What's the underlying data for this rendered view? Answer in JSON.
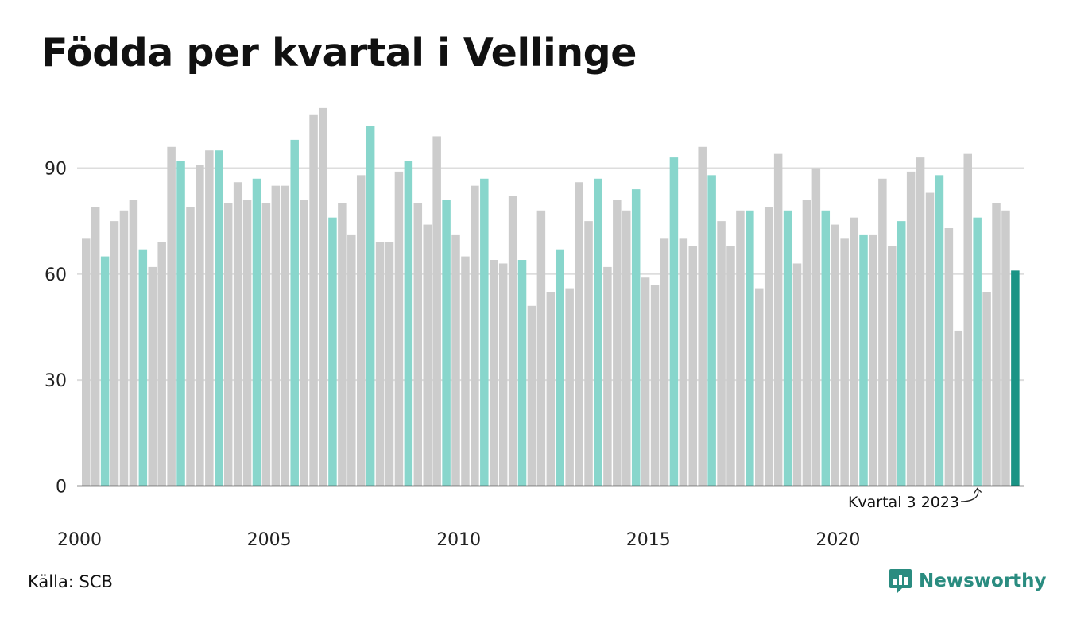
{
  "title": "Födda per kvartal i Vellinge",
  "source": "Källa: SCB",
  "brand": "Newsworthy",
  "colors": {
    "bar_default": "#cccccc",
    "bar_q3": "#88d6cc",
    "bar_latest": "#1a9485",
    "gridline": "#dddddd",
    "axis": "#222222",
    "brand": "#2a8c80"
  },
  "chart_data": {
    "type": "bar",
    "title": "Födda per kvartal i Vellinge",
    "xlabel": "",
    "ylabel": "",
    "ylim": [
      0,
      110
    ],
    "yticks": [
      0,
      30,
      60,
      90
    ],
    "xtick_labels": [
      "2000",
      "2005",
      "2010",
      "2015",
      "2020"
    ],
    "grid": true,
    "highlight": "third quarter of each year in teal; latest quarter in dark teal",
    "annotation": "Kvartal 3 2023",
    "categories": [
      "2000 K1",
      "2000 K2",
      "2000 K3",
      "2000 K4",
      "2001 K1",
      "2001 K2",
      "2001 K3",
      "2001 K4",
      "2002 K1",
      "2002 K2",
      "2002 K3",
      "2002 K4",
      "2003 K1",
      "2003 K2",
      "2003 K3",
      "2003 K4",
      "2004 K1",
      "2004 K2",
      "2004 K3",
      "2004 K4",
      "2005 K1",
      "2005 K2",
      "2005 K3",
      "2005 K4",
      "2006 K1",
      "2006 K2",
      "2006 K3",
      "2006 K4",
      "2007 K1",
      "2007 K2",
      "2007 K3",
      "2007 K4",
      "2008 K1",
      "2008 K2",
      "2008 K3",
      "2008 K4",
      "2009 K1",
      "2009 K2",
      "2009 K3",
      "2009 K4",
      "2010 K1",
      "2010 K2",
      "2010 K3",
      "2010 K4",
      "2011 K1",
      "2011 K2",
      "2011 K3",
      "2011 K4",
      "2012 K1",
      "2012 K2",
      "2012 K3",
      "2012 K4",
      "2013 K1",
      "2013 K2",
      "2013 K3",
      "2013 K4",
      "2014 K1",
      "2014 K2",
      "2014 K3",
      "2014 K4",
      "2015 K1",
      "2015 K2",
      "2015 K3",
      "2015 K4",
      "2016 K1",
      "2016 K2",
      "2016 K3",
      "2016 K4",
      "2017 K1",
      "2017 K2",
      "2017 K3",
      "2017 K4",
      "2018 K1",
      "2018 K2",
      "2018 K3",
      "2018 K4",
      "2019 K1",
      "2019 K2",
      "2019 K3",
      "2019 K4",
      "2020 K1",
      "2020 K2",
      "2020 K3",
      "2020 K4",
      "2021 K1",
      "2021 K2",
      "2021 K3",
      "2021 K4",
      "2022 K1",
      "2022 K2",
      "2022 K3",
      "2022 K4",
      "2023 K1",
      "2023 K2",
      "2023 K3",
      "2023 K4",
      "2024 K1",
      "2024 K2",
      "2024 K3"
    ],
    "values": [
      70,
      79,
      65,
      75,
      78,
      81,
      67,
      62,
      69,
      96,
      92,
      79,
      91,
      95,
      95,
      80,
      86,
      81,
      87,
      80,
      85,
      85,
      98,
      81,
      105,
      107,
      76,
      80,
      71,
      88,
      102,
      69,
      69,
      89,
      92,
      80,
      74,
      99,
      81,
      71,
      65,
      85,
      87,
      64,
      63,
      82,
      64,
      51,
      78,
      55,
      67,
      56,
      86,
      75,
      87,
      62,
      81,
      78,
      84,
      59,
      57,
      70,
      93,
      70,
      68,
      96,
      88,
      75,
      68,
      78,
      78,
      56,
      79,
      94,
      78,
      63,
      81,
      90,
      78,
      74,
      70,
      76,
      71,
      71,
      87,
      68,
      75,
      89,
      93,
      83,
      88,
      73,
      44,
      94,
      76,
      55,
      80,
      78,
      61
    ]
  }
}
